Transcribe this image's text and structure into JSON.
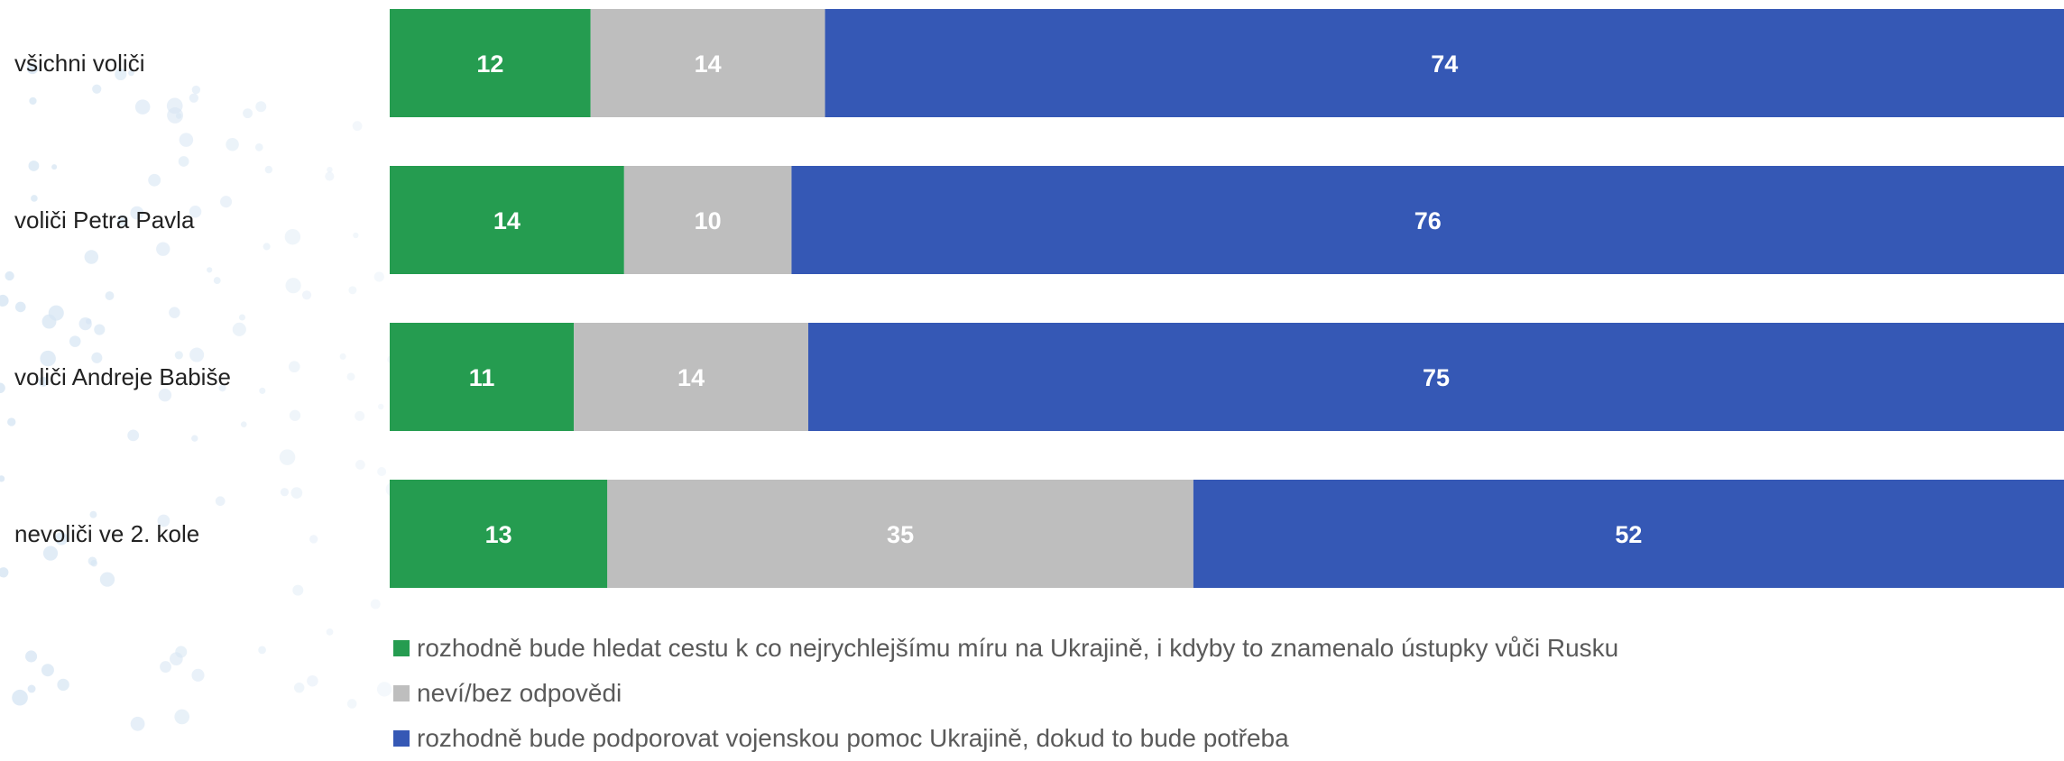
{
  "chart_data": {
    "type": "bar",
    "orientation": "horizontal",
    "stacked": true,
    "categories": [
      "všichni voliči",
      "voliči Petra Pavla",
      "voliči Andreje Babiše",
      "nevoliči ve 2. kole"
    ],
    "series": [
      {
        "name": "rozhodně bude hledat cestu k co nejrychlejšímu míru na Ukrajině, i kdyby to znamenalo ústupky vůči Rusku",
        "color": "#259c50",
        "values": [
          12,
          14,
          11,
          13
        ]
      },
      {
        "name": "neví/bez odpovědi",
        "color": "#bebebe",
        "values": [
          14,
          10,
          14,
          35
        ]
      },
      {
        "name": "rozhodně bude podporovat vojenskou pomoc Ukrajině, dokud to bude potřeba",
        "color": "#3558b5",
        "values": [
          74,
          76,
          75,
          52
        ]
      }
    ],
    "xlim": [
      0,
      100
    ],
    "grid": false,
    "legend_position": "bottom"
  }
}
